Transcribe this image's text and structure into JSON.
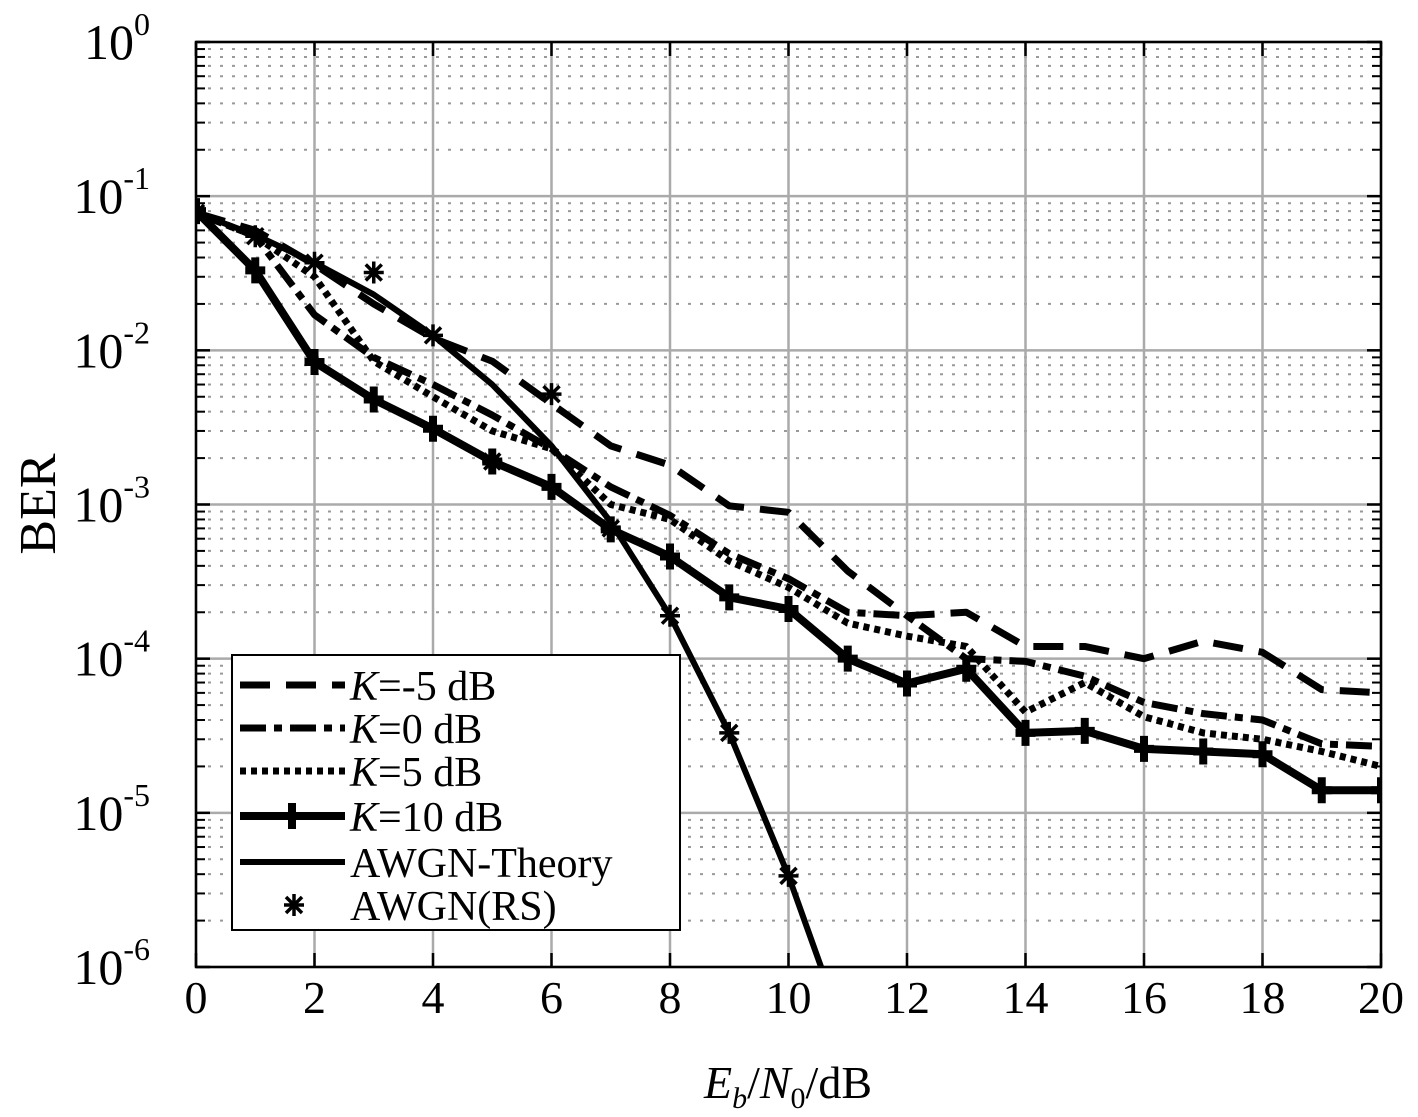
{
  "chart_data": {
    "type": "line",
    "title": "",
    "xlabel": {
      "E": "E",
      "b": "b",
      "slash1": "/",
      "N": "N",
      "zero": "0",
      "rest": "/dB"
    },
    "ylabel": "BER",
    "xlim": [
      0,
      20
    ],
    "ylim": [
      1e-06,
      1
    ],
    "yscale": "log",
    "grid": true,
    "legend_position": "bottom-left",
    "x_ticks": [
      "0",
      "2",
      "4",
      "6",
      "8",
      "10",
      "12",
      "14",
      "16",
      "18",
      "20"
    ],
    "y_ticks": [
      {
        "base": "10",
        "exp": "0"
      },
      {
        "base": "10",
        "exp": "-1"
      },
      {
        "base": "10",
        "exp": "-2"
      },
      {
        "base": "10",
        "exp": "-3"
      },
      {
        "base": "10",
        "exp": "-4"
      },
      {
        "base": "10",
        "exp": "-5"
      },
      {
        "base": "10",
        "exp": "-6"
      }
    ],
    "series": [
      {
        "name": "K=-5 dB",
        "k_label": "K",
        "rest_label": "=-5 dB",
        "style": "dashed",
        "x": [
          0,
          1,
          2,
          3,
          4,
          5,
          6,
          7,
          8,
          9,
          10,
          11,
          12,
          13,
          14,
          15,
          16,
          17,
          18,
          19,
          20
        ],
        "y": [
          0.078,
          0.06,
          0.036,
          0.02,
          0.012,
          0.0085,
          0.0045,
          0.0024,
          0.0018,
          0.00098,
          0.00089,
          0.00037,
          0.00019,
          0.0002,
          0.00012,
          0.00012,
          0.0001,
          0.00013,
          0.00011,
          6.3e-05,
          6e-05
        ]
      },
      {
        "name": "K=0 dB",
        "k_label": "K",
        "rest_label": "=0 dB",
        "style": "dashdot",
        "x": [
          0,
          1,
          2,
          3,
          4,
          5,
          6,
          7,
          8,
          9,
          10,
          11,
          12,
          13,
          14,
          15,
          16,
          17,
          18,
          19,
          20
        ],
        "y": [
          0.078,
          0.055,
          0.017,
          0.009,
          0.006,
          0.0038,
          0.0023,
          0.0013,
          0.00085,
          0.00048,
          0.00033,
          0.0002,
          0.00019,
          0.0001,
          9.6e-05,
          7.7e-05,
          5.2e-05,
          4.4e-05,
          4e-05,
          2.8e-05,
          2.7e-05
        ]
      },
      {
        "name": "K=5 dB",
        "k_label": "K",
        "rest_label": "=5 dB",
        "style": "dotted",
        "x": [
          0,
          1,
          2,
          3,
          4,
          5,
          6,
          7,
          8,
          9,
          10,
          11,
          12,
          13,
          14,
          15,
          16,
          17,
          18,
          19,
          20
        ],
        "y": [
          0.078,
          0.055,
          0.03,
          0.0085,
          0.005,
          0.003,
          0.0023,
          0.001,
          0.0008,
          0.00043,
          0.00029,
          0.00017,
          0.00014,
          0.00012,
          4.5e-05,
          7e-05,
          4.2e-05,
          3.3e-05,
          3e-05,
          2.5e-05,
          2e-05
        ]
      },
      {
        "name": "K=10 dB",
        "k_label": "K",
        "rest_label": "=10 dB",
        "style": "solid-plus",
        "x": [
          0,
          1,
          2,
          3,
          4,
          5,
          6,
          7,
          8,
          9,
          10,
          11,
          12,
          13,
          14,
          15,
          16,
          17,
          18,
          19,
          20
        ],
        "y": [
          0.08,
          0.033,
          0.0084,
          0.0048,
          0.0031,
          0.0019,
          0.0013,
          0.00069,
          0.00046,
          0.00025,
          0.00021,
          0.0001,
          6.9e-05,
          8.6e-05,
          3.3e-05,
          3.4e-05,
          2.6e-05,
          2.5e-05,
          2.4e-05,
          1.4e-05,
          1.4e-05
        ]
      },
      {
        "name": "AWGN-Theory",
        "style": "solid",
        "x": [
          0,
          1,
          2,
          3,
          4,
          5,
          6,
          7,
          8,
          9,
          10,
          10.55
        ],
        "y": [
          0.078,
          0.056,
          0.037,
          0.023,
          0.0125,
          0.006,
          0.0024,
          0.00077,
          0.00019,
          3.3e-05,
          3.9e-06,
          1e-06
        ]
      },
      {
        "name": "AWGN(RS)",
        "style": "asterisk",
        "x": [
          0,
          1,
          2,
          3,
          4,
          5,
          6,
          7,
          8,
          9,
          10
        ],
        "y": [
          0.078,
          0.055,
          0.037,
          0.032,
          0.0125,
          0.0019,
          0.0052,
          0.0007,
          0.00019,
          3.3e-05,
          3.9e-06
        ]
      }
    ]
  }
}
